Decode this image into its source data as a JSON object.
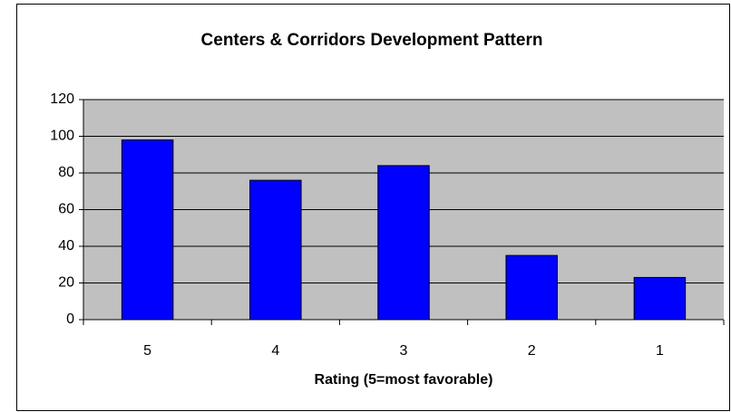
{
  "chart_data": {
    "type": "bar",
    "title": "Centers & Corridors Development Pattern",
    "x_label": "Rating (5=most favorable)",
    "categories": [
      "5",
      "4",
      "3",
      "2",
      "1"
    ],
    "values": [
      98,
      76,
      84,
      35,
      23
    ],
    "color": "#0000ff",
    "ylim": [
      0,
      120
    ],
    "yticks": [
      0,
      20,
      40,
      60,
      80,
      100,
      120
    ],
    "grid": true
  }
}
